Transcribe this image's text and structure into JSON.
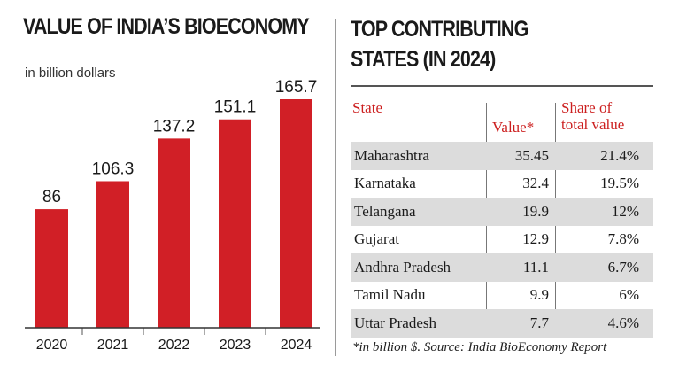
{
  "left_panel": {
    "title": "VALUE OF INDIA’S BIOECONOMY",
    "unit": "in billion dollars"
  },
  "right_panel": {
    "title_line1": "TOP CONTRIBUTING",
    "title_line2": "STATES (IN 2024)",
    "headers": {
      "state": "State",
      "value": "Value*",
      "share_line1": "Share of",
      "share_line2": "total value"
    },
    "rows": [
      {
        "state": "Maharashtra",
        "value": "35.45",
        "share": "21.4%"
      },
      {
        "state": "Karnataka",
        "value": "32.4",
        "share": "19.5%"
      },
      {
        "state": "Telangana",
        "value": "19.9",
        "share": "12%"
      },
      {
        "state": "Gujarat",
        "value": "12.9",
        "share": "7.8%"
      },
      {
        "state": "Andhra Pradesh",
        "value": "11.1",
        "share": "6.7%"
      },
      {
        "state": "Tamil Nadu",
        "value": "9.9",
        "share": "6%"
      },
      {
        "state": "Uttar Pradesh",
        "value": "7.7",
        "share": "4.6%"
      }
    ],
    "source": "*in billion $. Source: India BioEconomy Report"
  },
  "colors": {
    "bar": "#d11f26",
    "header_text": "#cc1f1f",
    "row_shade": "#dcdcdc"
  },
  "chart_data": [
    {
      "type": "bar",
      "title": "VALUE OF INDIA’S BIOECONOMY",
      "subtitle": "in billion dollars",
      "categories": [
        "2020",
        "2021",
        "2022",
        "2023",
        "2024"
      ],
      "values": [
        86,
        106.3,
        137.2,
        151.1,
        165.7
      ],
      "data_labels": [
        "86",
        "106.3",
        "137.2",
        "151.1",
        "165.7"
      ],
      "ylim": [
        0,
        170
      ],
      "grid": false
    },
    {
      "type": "table",
      "title": "TOP CONTRIBUTING STATES (IN 2024)",
      "columns": [
        "State",
        "Value*",
        "Share of total value"
      ],
      "rows": [
        [
          "Maharashtra",
          35.45,
          "21.4%"
        ],
        [
          "Karnataka",
          32.4,
          "19.5%"
        ],
        [
          "Telangana",
          19.9,
          "12%"
        ],
        [
          "Gujarat",
          12.9,
          "7.8%"
        ],
        [
          "Andhra Pradesh",
          11.1,
          "6.7%"
        ],
        [
          "Tamil Nadu",
          9.9,
          "6%"
        ],
        [
          "Uttar Pradesh",
          7.7,
          "4.6%"
        ]
      ]
    }
  ]
}
